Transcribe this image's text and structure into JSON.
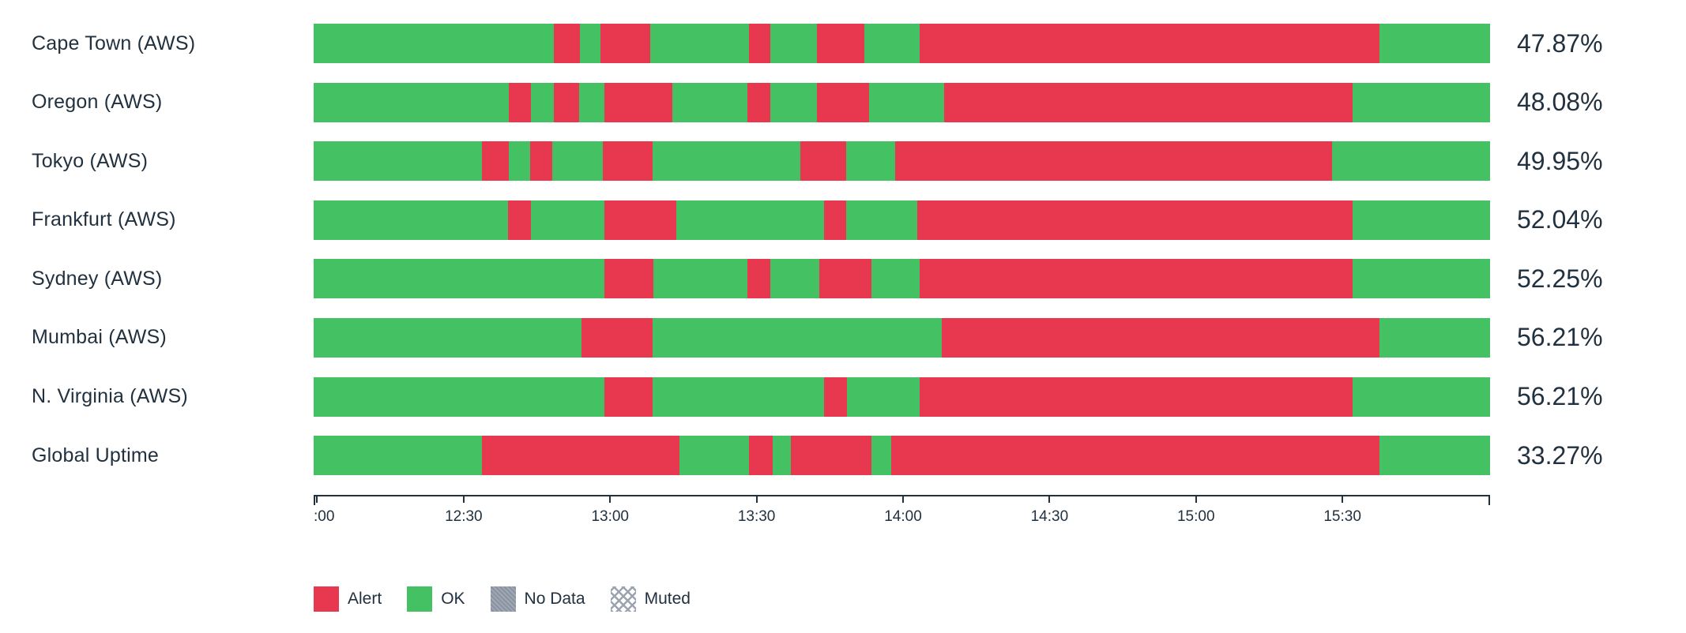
{
  "colors": {
    "alert": "#e8384f",
    "ok": "#43c163",
    "nodata": "#8b94a2",
    "muted_line": "#9aa3af",
    "text": "#22313f",
    "axis": "#22313f"
  },
  "chart_data": {
    "type": "bar",
    "subtype": "status-timeline",
    "title": "",
    "time_axis": {
      "tick_labels": [
        ":00",
        "12:30",
        "13:00",
        "13:30",
        "14:00",
        "14:30",
        "15:00",
        "15:30"
      ],
      "tick_positions_pct": [
        0.3,
        12.75,
        25.2,
        37.65,
        50.1,
        62.55,
        75.0,
        87.45
      ]
    },
    "rows": [
      {
        "label": "Cape Town (AWS)",
        "value": "47.87%",
        "segments": [
          {
            "status": "ok",
            "pct": 20.4
          },
          {
            "status": "alert",
            "pct": 2.2
          },
          {
            "status": "ok",
            "pct": 1.8
          },
          {
            "status": "alert",
            "pct": 4.2
          },
          {
            "status": "ok",
            "pct": 8.4
          },
          {
            "status": "alert",
            "pct": 1.8
          },
          {
            "status": "ok",
            "pct": 4.0
          },
          {
            "status": "alert",
            "pct": 4.0
          },
          {
            "status": "ok",
            "pct": 4.7
          },
          {
            "status": "alert",
            "pct": 39.1
          },
          {
            "status": "ok",
            "pct": 9.4
          }
        ]
      },
      {
        "label": "Oregon (AWS)",
        "value": "48.08%",
        "segments": [
          {
            "status": "ok",
            "pct": 16.6
          },
          {
            "status": "alert",
            "pct": 1.9
          },
          {
            "status": "ok",
            "pct": 1.9
          },
          {
            "status": "alert",
            "pct": 2.2
          },
          {
            "status": "ok",
            "pct": 2.1
          },
          {
            "status": "alert",
            "pct": 5.8
          },
          {
            "status": "ok",
            "pct": 6.4
          },
          {
            "status": "alert",
            "pct": 1.9
          },
          {
            "status": "ok",
            "pct": 4.0
          },
          {
            "status": "alert",
            "pct": 4.4
          },
          {
            "status": "ok",
            "pct": 6.4
          },
          {
            "status": "alert",
            "pct": 34.7
          },
          {
            "status": "ok",
            "pct": 11.7
          }
        ]
      },
      {
        "label": "Tokyo (AWS)",
        "value": "49.95%",
        "segments": [
          {
            "status": "ok",
            "pct": 14.3
          },
          {
            "status": "alert",
            "pct": 2.3
          },
          {
            "status": "ok",
            "pct": 1.8
          },
          {
            "status": "alert",
            "pct": 1.9
          },
          {
            "status": "ok",
            "pct": 4.3
          },
          {
            "status": "alert",
            "pct": 4.2
          },
          {
            "status": "ok",
            "pct": 12.6
          },
          {
            "status": "alert",
            "pct": 3.9
          },
          {
            "status": "ok",
            "pct": 4.1
          },
          {
            "status": "alert",
            "pct": 37.2
          },
          {
            "status": "ok",
            "pct": 13.4
          }
        ]
      },
      {
        "label": "Frankfurt (AWS)",
        "value": "52.04%",
        "segments": [
          {
            "status": "ok",
            "pct": 16.5
          },
          {
            "status": "alert",
            "pct": 2.0
          },
          {
            "status": "ok",
            "pct": 6.2
          },
          {
            "status": "alert",
            "pct": 6.1
          },
          {
            "status": "ok",
            "pct": 12.6
          },
          {
            "status": "alert",
            "pct": 1.9
          },
          {
            "status": "ok",
            "pct": 6.0
          },
          {
            "status": "alert",
            "pct": 37.0
          },
          {
            "status": "ok",
            "pct": 11.7
          }
        ]
      },
      {
        "label": "Sydney (AWS)",
        "value": "52.25%",
        "segments": [
          {
            "status": "ok",
            "pct": 24.7
          },
          {
            "status": "alert",
            "pct": 4.2
          },
          {
            "status": "ok",
            "pct": 8.0
          },
          {
            "status": "alert",
            "pct": 1.9
          },
          {
            "status": "ok",
            "pct": 4.2
          },
          {
            "status": "alert",
            "pct": 4.4
          },
          {
            "status": "ok",
            "pct": 4.1
          },
          {
            "status": "alert",
            "pct": 36.8
          },
          {
            "status": "ok",
            "pct": 11.7
          }
        ]
      },
      {
        "label": "Mumbai (AWS)",
        "value": "56.21%",
        "segments": [
          {
            "status": "ok",
            "pct": 22.8
          },
          {
            "status": "alert",
            "pct": 6.0
          },
          {
            "status": "ok",
            "pct": 24.6
          },
          {
            "status": "alert",
            "pct": 37.2
          },
          {
            "status": "ok",
            "pct": 9.4
          }
        ]
      },
      {
        "label": "N. Virginia (AWS)",
        "value": "56.21%",
        "segments": [
          {
            "status": "ok",
            "pct": 24.7
          },
          {
            "status": "alert",
            "pct": 4.1
          },
          {
            "status": "ok",
            "pct": 14.6
          },
          {
            "status": "alert",
            "pct": 1.9
          },
          {
            "status": "ok",
            "pct": 6.2
          },
          {
            "status": "alert",
            "pct": 36.8
          },
          {
            "status": "ok",
            "pct": 11.7
          }
        ]
      },
      {
        "label": "Global Uptime",
        "value": "33.27%",
        "segments": [
          {
            "status": "ok",
            "pct": 14.3
          },
          {
            "status": "alert",
            "pct": 16.8
          },
          {
            "status": "ok",
            "pct": 5.9
          },
          {
            "status": "alert",
            "pct": 2.0
          },
          {
            "status": "ok",
            "pct": 1.6
          },
          {
            "status": "alert",
            "pct": 6.8
          },
          {
            "status": "ok",
            "pct": 1.7
          },
          {
            "status": "alert",
            "pct": 41.5
          },
          {
            "status": "ok",
            "pct": 9.4
          }
        ]
      }
    ],
    "legend": [
      {
        "label": "Alert",
        "status": "alert"
      },
      {
        "label": "OK",
        "status": "ok"
      },
      {
        "label": "No Data",
        "status": "nodata"
      },
      {
        "label": "Muted",
        "status": "muted"
      }
    ]
  }
}
